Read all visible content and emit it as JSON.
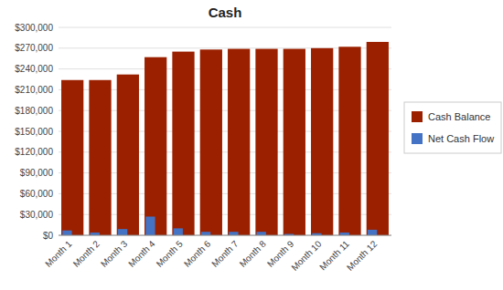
{
  "chart_data": {
    "type": "bar",
    "title": "Cash",
    "categories": [
      "Month 1",
      "Month 2",
      "Month 3",
      "Month 4",
      "Month 5",
      "Month 6",
      "Month 7",
      "Month 8",
      "Month 9",
      "Month 10",
      "Month 11",
      "Month 12"
    ],
    "series": [
      {
        "name": "Cash Balance",
        "color": "#9b2000",
        "values": [
          224000,
          224000,
          232000,
          257000,
          265000,
          268000,
          269000,
          269000,
          269000,
          270000,
          272000,
          279000
        ]
      },
      {
        "name": "Net Cash Flow",
        "color": "#4472c4",
        "values": [
          7000,
          4000,
          9000,
          27000,
          10000,
          5000,
          5000,
          5000,
          2000,
          3000,
          4000,
          8000
        ]
      }
    ],
    "ylim": [
      0,
      300000
    ],
    "yticks": [
      {
        "value": 0,
        "label": "$0"
      },
      {
        "value": 30000,
        "label": "$30,000"
      },
      {
        "value": 60000,
        "label": "$60,000"
      },
      {
        "value": 90000,
        "label": "$90,000"
      },
      {
        "value": 120000,
        "label": "$120,000"
      },
      {
        "value": 150000,
        "label": "$150,000"
      },
      {
        "value": 180000,
        "label": "$180,000"
      },
      {
        "value": 210000,
        "label": "$210,000"
      },
      {
        "value": 240000,
        "label": "$240,000"
      },
      {
        "value": 270000,
        "label": "$270,000"
      },
      {
        "value": 300000,
        "label": "$300,000"
      }
    ],
    "grid": true,
    "legend": "right"
  }
}
